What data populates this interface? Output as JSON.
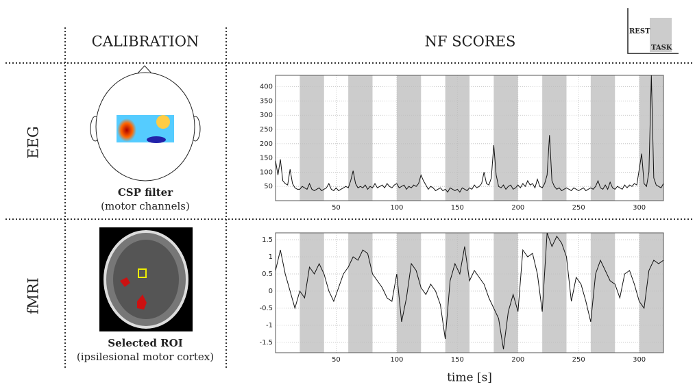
{
  "header": {
    "calibration": "CALIBRATION",
    "scores": "NF SCORES"
  },
  "legend": {
    "rest": "REST",
    "task": "TASK"
  },
  "rows": [
    {
      "label": "EEG",
      "caption": "CSP filter",
      "subcaption": "(motor channels)"
    },
    {
      "label": "fMRI",
      "caption": "Selected ROI",
      "subcaption": "(ipsilesional motor cortex)"
    }
  ],
  "chart_data": [
    {
      "type": "line",
      "color": "#111",
      "shade_color": "#cccccc",
      "grid": true,
      "xlim": [
        0,
        320
      ],
      "ylim": [
        0,
        440
      ],
      "xticks": [
        50,
        100,
        150,
        200,
        250,
        300
      ],
      "yticks": [
        50,
        100,
        150,
        200,
        250,
        300,
        350,
        400
      ],
      "shaded_regions": [
        [
          20,
          40
        ],
        [
          60,
          80
        ],
        [
          100,
          120
        ],
        [
          140,
          160
        ],
        [
          180,
          200
        ],
        [
          220,
          240
        ],
        [
          260,
          280
        ],
        [
          300,
          320
        ]
      ],
      "x": [
        0,
        2,
        4,
        6,
        8,
        10,
        12,
        14,
        16,
        18,
        20,
        22,
        24,
        26,
        28,
        30,
        32,
        34,
        36,
        38,
        40,
        42,
        44,
        46,
        48,
        50,
        52,
        54,
        56,
        58,
        60,
        62,
        64,
        66,
        68,
        70,
        72,
        74,
        76,
        78,
        80,
        82,
        84,
        86,
        88,
        90,
        92,
        94,
        96,
        98,
        100,
        102,
        104,
        106,
        108,
        110,
        112,
        114,
        116,
        118,
        120,
        122,
        124,
        126,
        128,
        130,
        132,
        134,
        136,
        138,
        140,
        142,
        144,
        146,
        148,
        150,
        152,
        154,
        156,
        158,
        160,
        162,
        164,
        166,
        168,
        170,
        172,
        174,
        176,
        178,
        180,
        182,
        184,
        186,
        188,
        190,
        192,
        194,
        196,
        198,
        200,
        202,
        204,
        206,
        208,
        210,
        212,
        214,
        216,
        218,
        220,
        222,
        224,
        226,
        228,
        230,
        232,
        234,
        236,
        238,
        240,
        242,
        244,
        246,
        248,
        250,
        252,
        254,
        256,
        258,
        260,
        262,
        264,
        266,
        268,
        270,
        272,
        274,
        276,
        278,
        280,
        282,
        284,
        286,
        288,
        290,
        292,
        294,
        296,
        298,
        300,
        302,
        304,
        306,
        308,
        310,
        312,
        314,
        316,
        318,
        320
      ],
      "values": [
        140,
        90,
        145,
        70,
        60,
        55,
        110,
        60,
        45,
        40,
        40,
        50,
        45,
        40,
        60,
        40,
        35,
        40,
        45,
        35,
        40,
        45,
        60,
        40,
        35,
        45,
        35,
        40,
        45,
        50,
        45,
        70,
        105,
        60,
        45,
        50,
        45,
        55,
        40,
        50,
        45,
        60,
        45,
        50,
        55,
        45,
        60,
        50,
        45,
        55,
        60,
        45,
        50,
        55,
        40,
        50,
        45,
        55,
        50,
        60,
        90,
        70,
        55,
        40,
        50,
        45,
        35,
        40,
        45,
        35,
        40,
        30,
        45,
        40,
        35,
        40,
        30,
        45,
        40,
        35,
        45,
        40,
        55,
        45,
        50,
        60,
        100,
        60,
        55,
        80,
        195,
        90,
        50,
        45,
        55,
        40,
        50,
        55,
        40,
        45,
        55,
        45,
        60,
        50,
        70,
        55,
        60,
        45,
        75,
        50,
        45,
        60,
        90,
        230,
        70,
        50,
        40,
        45,
        35,
        40,
        45,
        40,
        35,
        45,
        40,
        35,
        40,
        45,
        35,
        40,
        45,
        40,
        50,
        70,
        45,
        40,
        55,
        40,
        65,
        45,
        40,
        50,
        45,
        40,
        55,
        45,
        55,
        50,
        60,
        55,
        110,
        165,
        60,
        50,
        100,
        440,
        80,
        55,
        50,
        45,
        60
      ]
    },
    {
      "type": "line",
      "color": "#111",
      "shade_color": "#cccccc",
      "grid": true,
      "xlabel": "time [s]",
      "xlim": [
        0,
        320
      ],
      "ylim": [
        -1.8,
        1.7
      ],
      "xticks": [
        50,
        100,
        150,
        200,
        250,
        300
      ],
      "yticks": [
        -1.5,
        -1,
        -0.5,
        0,
        0.5,
        1,
        1.5
      ],
      "shaded_regions": [
        [
          20,
          40
        ],
        [
          60,
          80
        ],
        [
          100,
          120
        ],
        [
          140,
          160
        ],
        [
          180,
          200
        ],
        [
          220,
          240
        ],
        [
          260,
          280
        ],
        [
          300,
          320
        ]
      ],
      "x": [
        0,
        4,
        8,
        12,
        16,
        20,
        24,
        28,
        32,
        36,
        40,
        44,
        48,
        52,
        56,
        60,
        64,
        68,
        72,
        76,
        80,
        84,
        88,
        92,
        96,
        100,
        104,
        108,
        112,
        116,
        120,
        124,
        128,
        132,
        136,
        140,
        144,
        148,
        152,
        156,
        160,
        164,
        168,
        172,
        176,
        180,
        184,
        188,
        192,
        196,
        200,
        204,
        208,
        212,
        216,
        220,
        224,
        228,
        232,
        236,
        240,
        244,
        248,
        252,
        256,
        260,
        264,
        268,
        272,
        276,
        280,
        284,
        288,
        292,
        296,
        300,
        304,
        308,
        312,
        316,
        320
      ],
      "values": [
        0.6,
        1.2,
        0.5,
        0,
        -0.5,
        0,
        -0.2,
        0.7,
        0.5,
        0.8,
        0.5,
        0,
        -0.3,
        0.1,
        0.5,
        0.7,
        1,
        0.9,
        1.2,
        1.1,
        0.5,
        0.3,
        0.1,
        -0.2,
        -0.3,
        0.5,
        -0.9,
        -0.2,
        0.8,
        0.6,
        0.1,
        -0.1,
        0.2,
        0,
        -0.4,
        -1.4,
        0.3,
        0.8,
        0.5,
        1.3,
        0.3,
        0.6,
        0.4,
        0.2,
        -0.2,
        -0.5,
        -0.8,
        -1.7,
        -0.6,
        -0.1,
        -0.6,
        1.2,
        1,
        1.1,
        0.5,
        -0.6,
        1.7,
        1.3,
        1.6,
        1.4,
        1,
        -0.3,
        0.4,
        0.2,
        -0.3,
        -0.9,
        0.5,
        0.9,
        0.6,
        0.3,
        0.2,
        -0.2,
        0.5,
        0.6,
        0.2,
        -0.3,
        -0.5,
        0.6,
        0.9,
        0.8,
        0.9
      ]
    }
  ]
}
